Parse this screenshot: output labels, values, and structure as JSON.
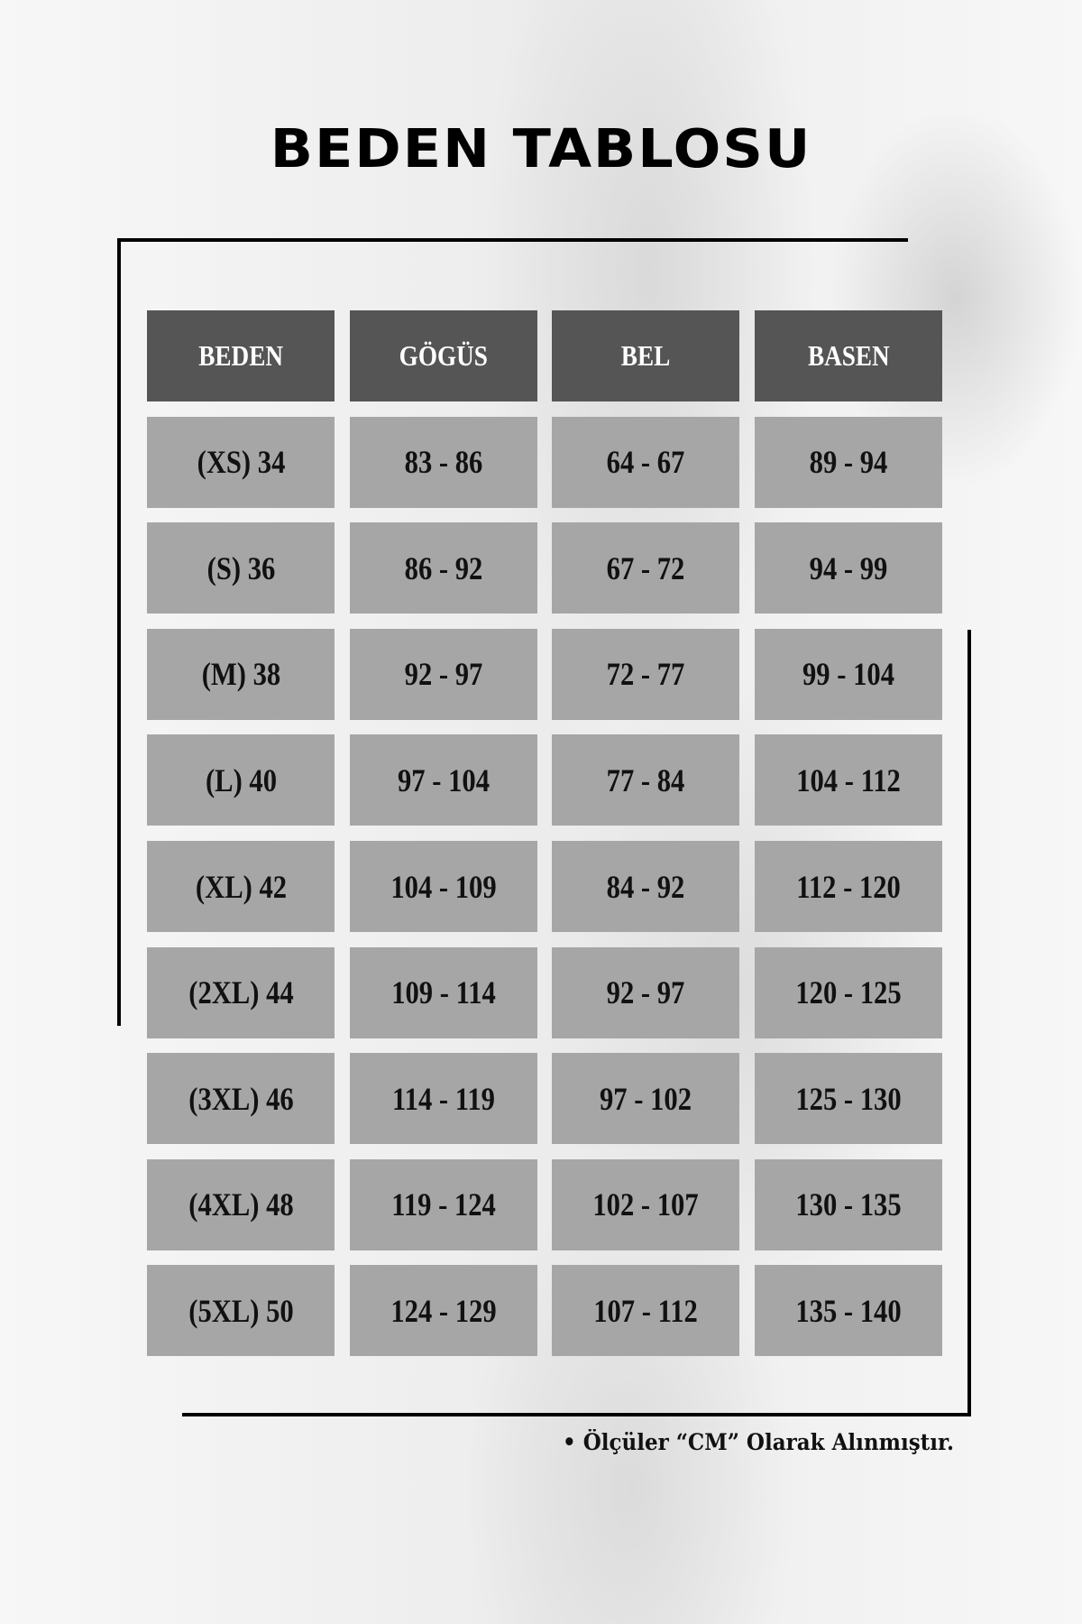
{
  "title": "BEDEN TABLOSU",
  "table": {
    "headers": [
      "BEDEN",
      "GÖGÜS",
      "BEL",
      "BASEN"
    ],
    "rows": [
      [
        "(XS) 34",
        "83 - 86",
        "64 - 67",
        "89 - 94"
      ],
      [
        "(S) 36",
        "86 - 92",
        "67 - 72",
        "94 - 99"
      ],
      [
        "(M) 38",
        "92 - 97",
        "72 - 77",
        "99 - 104"
      ],
      [
        "(L) 40",
        "97 - 104",
        "77 - 84",
        "104 - 112"
      ],
      [
        "(XL) 42",
        "104 - 109",
        "84 - 92",
        "112 - 120"
      ],
      [
        "(2XL) 44",
        "109 - 114",
        "92 - 97",
        "120 - 125"
      ],
      [
        "(3XL) 46",
        "114 - 119",
        "97 - 102",
        "125 - 130"
      ],
      [
        "(4XL) 48",
        "119 - 124",
        "102 - 107",
        "130 - 135"
      ],
      [
        "(5XL) 50",
        "124 - 129",
        "107 - 112",
        "135 - 140"
      ]
    ]
  },
  "note": "• Ölçüler “CM” Olarak Alınmıştır.",
  "colors": {
    "header_bg": "#555555",
    "cell_bg": "#a6a6a6",
    "frame": "#000000"
  }
}
